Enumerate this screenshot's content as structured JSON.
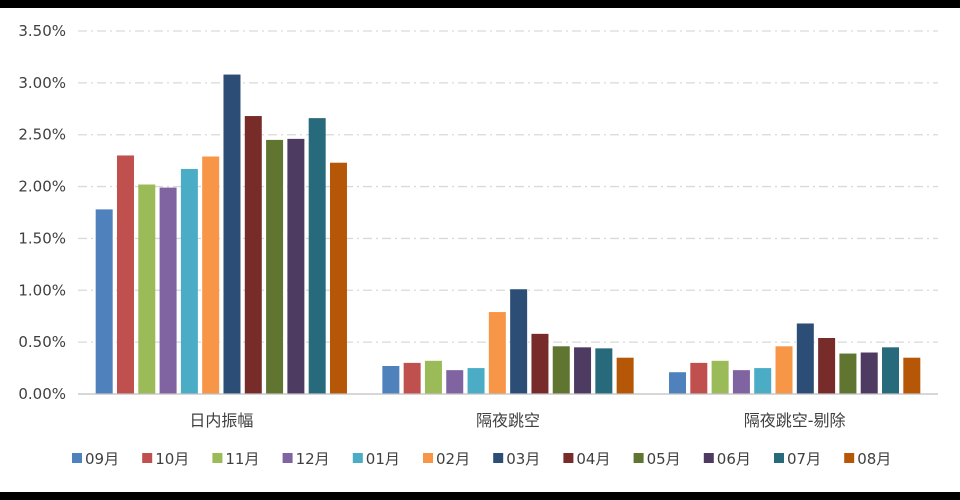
{
  "chart_data": {
    "type": "bar",
    "title": "",
    "xlabel": "",
    "ylabel": "",
    "categories": [
      "日内振幅",
      "隔夜跳空",
      "隔夜跳空-剔除"
    ],
    "y_ticks": [
      "0.00%",
      "0.50%",
      "1.00%",
      "1.50%",
      "2.00%",
      "2.50%",
      "3.00%",
      "3.50%"
    ],
    "ylim": [
      0,
      0.035
    ],
    "grid": true,
    "legend_position": "bottom",
    "series": [
      {
        "name": "09月",
        "color": "#4f81bd",
        "values": [
          0.0178,
          0.0027,
          0.0021
        ]
      },
      {
        "name": "10月",
        "color": "#c0504d",
        "values": [
          0.023,
          0.003,
          0.003
        ]
      },
      {
        "name": "11月",
        "color": "#9bbb59",
        "values": [
          0.0202,
          0.0032,
          0.0032
        ]
      },
      {
        "name": "12月",
        "color": "#8064a2",
        "values": [
          0.0199,
          0.0023,
          0.0023
        ]
      },
      {
        "name": "01月",
        "color": "#4bacc6",
        "values": [
          0.0217,
          0.0025,
          0.0025
        ]
      },
      {
        "name": "02月",
        "color": "#f79646",
        "values": [
          0.0229,
          0.0079,
          0.0046
        ]
      },
      {
        "name": "03月",
        "color": "#2c4d75",
        "values": [
          0.0308,
          0.0101,
          0.0068
        ]
      },
      {
        "name": "04月",
        "color": "#772c2a",
        "values": [
          0.0268,
          0.0058,
          0.0054
        ]
      },
      {
        "name": "05月",
        "color": "#5f7530",
        "values": [
          0.0245,
          0.0046,
          0.0039
        ]
      },
      {
        "name": "06月",
        "color": "#4d3b62",
        "values": [
          0.0246,
          0.0045,
          0.004
        ]
      },
      {
        "name": "07月",
        "color": "#276a7c",
        "values": [
          0.0266,
          0.0044,
          0.0045
        ]
      },
      {
        "name": "08月",
        "color": "#b65708",
        "values": [
          0.0223,
          0.0035,
          0.0035
        ]
      }
    ]
  }
}
